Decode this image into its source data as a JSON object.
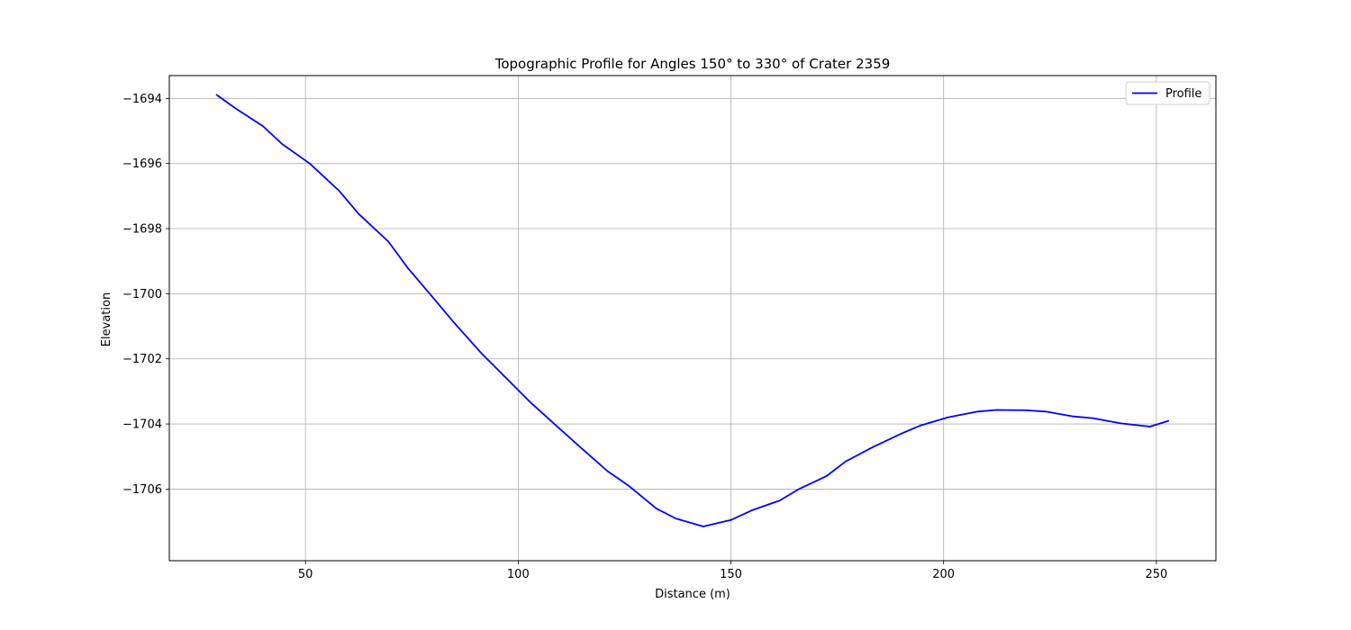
{
  "chart_data": {
    "type": "line",
    "title": "Topographic Profile for Angles 150° to 330° of Crater 2359",
    "xlabel": "Distance (m)",
    "ylabel": "Elevation",
    "xlim": [
      18,
      264
    ],
    "ylim": [
      -1708.2,
      -1693.3
    ],
    "xticks": [
      50,
      100,
      150,
      200,
      250
    ],
    "yticks": [
      -1694,
      -1696,
      -1698,
      -1700,
      -1702,
      -1704,
      -1706
    ],
    "grid": true,
    "legend_position": "top-right",
    "series": [
      {
        "name": "Profile",
        "color": "#0000ff",
        "x": [
          29,
          33.5,
          40,
          44.5,
          51,
          58,
          62.5,
          69.5,
          74,
          80.5,
          85,
          91.5,
          98,
          103,
          108.5,
          114.5,
          121,
          126,
          132.5,
          137,
          143.5,
          150,
          155,
          161.5,
          166,
          172.5,
          177,
          183.5,
          190,
          194.5,
          201,
          208,
          212.5,
          219.5,
          224,
          230.5,
          235,
          241.5,
          248.5,
          253
        ],
        "y": [
          -1693.88,
          -1694.3,
          -1694.85,
          -1695.4,
          -1696.0,
          -1696.85,
          -1697.55,
          -1698.4,
          -1699.2,
          -1700.2,
          -1700.9,
          -1701.85,
          -1702.7,
          -1703.35,
          -1704.0,
          -1704.7,
          -1705.45,
          -1705.9,
          -1706.6,
          -1706.9,
          -1707.15,
          -1706.95,
          -1706.65,
          -1706.35,
          -1706.0,
          -1705.6,
          -1705.15,
          -1704.7,
          -1704.3,
          -1704.05,
          -1703.8,
          -1703.62,
          -1703.57,
          -1703.58,
          -1703.62,
          -1703.77,
          -1703.82,
          -1703.98,
          -1704.08,
          -1703.9
        ]
      }
    ]
  }
}
